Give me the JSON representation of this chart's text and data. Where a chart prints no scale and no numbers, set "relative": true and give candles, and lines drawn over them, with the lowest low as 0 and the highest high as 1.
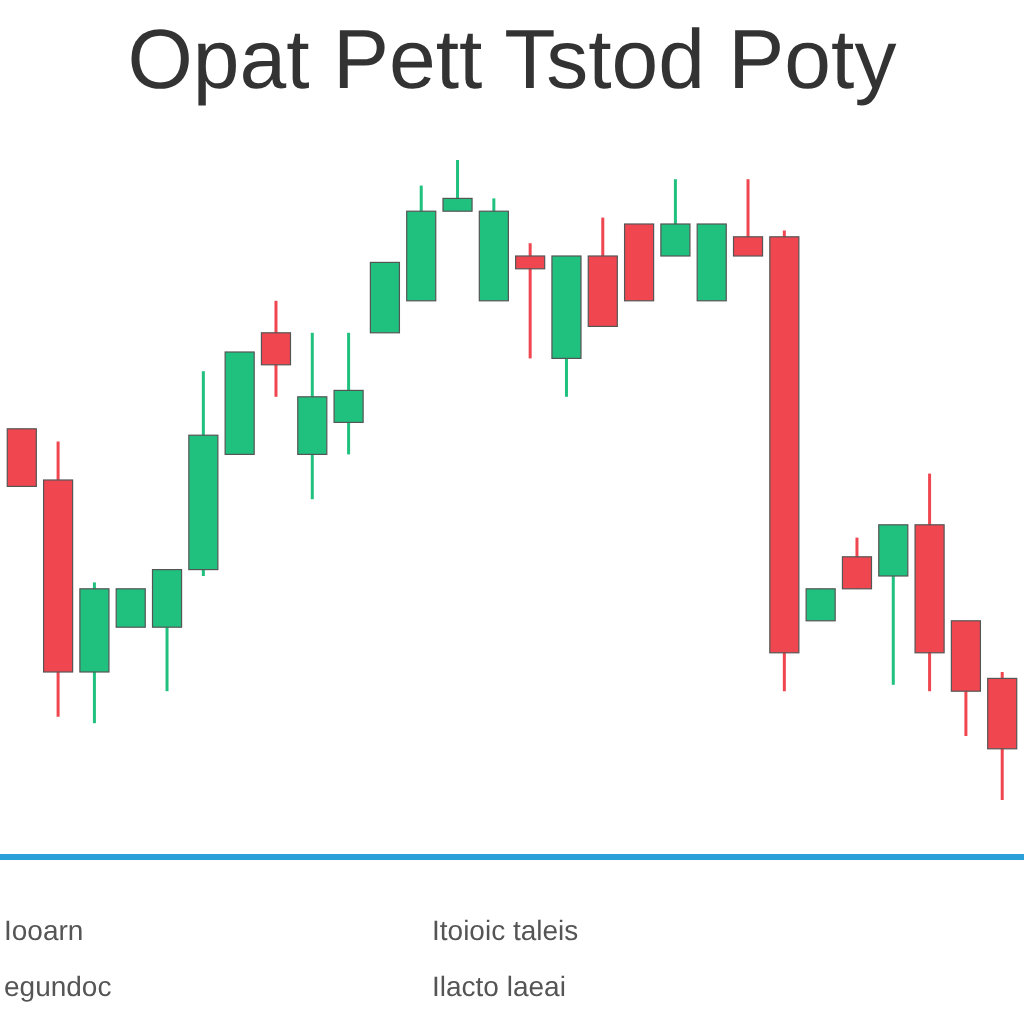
{
  "chart_data": {
    "type": "candlestick",
    "title": "Opat Pett Tstod Poty",
    "relative": true,
    "categories": [
      null,
      null,
      null,
      null,
      null,
      null,
      null,
      null,
      null,
      null,
      null,
      null,
      null,
      null,
      null,
      null,
      null,
      null,
      null,
      null,
      null,
      null,
      null,
      null,
      null,
      null,
      null,
      null
    ],
    "ohlc": [
      [
        0.58,
        0.58,
        0.49,
        0.49
      ],
      [
        0.5,
        0.56,
        0.13,
        0.2
      ],
      [
        0.2,
        0.34,
        0.12,
        0.33
      ],
      [
        0.27,
        0.33,
        0.27,
        0.33
      ],
      [
        0.27,
        0.36,
        0.17,
        0.36
      ],
      [
        0.36,
        0.67,
        0.35,
        0.57
      ],
      [
        0.54,
        0.7,
        0.54,
        0.7
      ],
      [
        0.73,
        0.78,
        0.63,
        0.68
      ],
      [
        0.54,
        0.73,
        0.47,
        0.63
      ],
      [
        0.59,
        0.73,
        0.54,
        0.64
      ],
      [
        0.73,
        0.84,
        0.73,
        0.84
      ],
      [
        0.78,
        0.96,
        0.78,
        0.92
      ],
      [
        0.92,
        1,
        0.92,
        0.94
      ],
      [
        0.78,
        0.94,
        0.78,
        0.92
      ],
      [
        0.85,
        0.87,
        0.69,
        0.83
      ],
      [
        0.69,
        0.85,
        0.63,
        0.85
      ],
      [
        0.85,
        0.91,
        0.74,
        0.74
      ],
      [
        0.9,
        0.9,
        0.78,
        0.78
      ],
      [
        0.85,
        0.97,
        0.85,
        0.9
      ],
      [
        0.78,
        0.9,
        0.78,
        0.9
      ],
      [
        0.88,
        0.97,
        0.85,
        0.85
      ],
      [
        0.88,
        0.89,
        0.17,
        0.23
      ],
      [
        0.28,
        0.33,
        0.28,
        0.33
      ],
      [
        0.38,
        0.41,
        0.33,
        0.33
      ],
      [
        0.35,
        0.43,
        0.18,
        0.43
      ],
      [
        0.43,
        0.51,
        0.17,
        0.23
      ],
      [
        0.28,
        0.28,
        0.1,
        0.17
      ],
      [
        0.19,
        0.2,
        0,
        0.08
      ]
    ],
    "colors": [
      "#f04650",
      "#f04650",
      "#20c07e",
      "#20c07e",
      "#20c07e",
      "#20c07e",
      "#20c07e",
      "#f04650",
      "#20c07e",
      "#20c07e",
      "#20c07e",
      "#20c07e",
      "#20c07e",
      "#20c07e",
      "#f04650",
      "#20c07e",
      "#f04650",
      "#f04650",
      "#20c07e",
      "#20c07e",
      "#f04650",
      "#f04650",
      "#20c07e",
      "#f04650",
      "#20c07e",
      "#f04650",
      "#f04650",
      "#f04650"
    ],
    "annotations": [
      "Iooarn",
      "egundoc",
      "Itoioic taleis",
      "Ilacto laeai"
    ]
  }
}
